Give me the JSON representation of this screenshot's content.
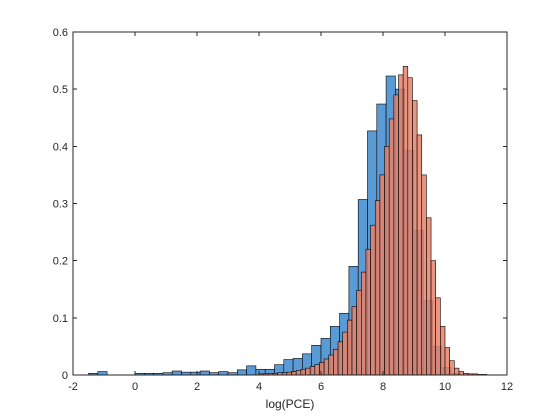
{
  "chart_data": {
    "type": "bar",
    "chart_subtype": "overlaid-histogram",
    "title": "",
    "xlabel": "log(PCE)",
    "ylabel": "",
    "xlim": [
      -2,
      12
    ],
    "ylim": [
      0,
      0.6
    ],
    "x_ticks": [
      -2,
      0,
      2,
      4,
      6,
      8,
      10,
      12
    ],
    "y_ticks": [
      0,
      0.1,
      0.2,
      0.3,
      0.4,
      0.5,
      0.6
    ],
    "x_tick_labels": [
      "-2",
      "0",
      "2",
      "4",
      "6",
      "8",
      "10",
      "12"
    ],
    "y_tick_labels": [
      "0",
      "0.1",
      "0.2",
      "0.3",
      "0.4",
      "0.5",
      "0.6"
    ],
    "grid": false,
    "legend": false,
    "series": [
      {
        "color": "#5b9bd5",
        "opacity": 1.0,
        "bin_width": 0.3,
        "bins_start": [
          -1.5,
          -1.2,
          0.0,
          0.3,
          0.6,
          0.9,
          1.2,
          1.5,
          1.8,
          2.1,
          2.4,
          2.7,
          3.0,
          3.3,
          3.6,
          3.9,
          4.2,
          4.5,
          4.8,
          5.1,
          5.4,
          5.7,
          6.0,
          6.3,
          6.6,
          6.9,
          7.2,
          7.5,
          7.8,
          8.1,
          8.4,
          8.7,
          9.0,
          9.3,
          9.6,
          9.9,
          10.2
        ],
        "values": [
          0.003,
          0.006,
          0.003,
          0.003,
          0.003,
          0.004,
          0.007,
          0.005,
          0.005,
          0.007,
          0.004,
          0.006,
          0.004,
          0.009,
          0.016,
          0.01,
          0.01,
          0.018,
          0.027,
          0.029,
          0.037,
          0.052,
          0.064,
          0.085,
          0.108,
          0.19,
          0.307,
          0.427,
          0.474,
          0.523,
          0.5,
          0.393,
          0.253,
          0.13,
          0.05,
          0.013,
          0.003
        ]
      },
      {
        "color": "#e8826a",
        "opacity": 0.85,
        "bin_width": 0.15,
        "bins_start": [
          4.0,
          4.15,
          4.3,
          4.45,
          4.6,
          4.75,
          4.9,
          5.05,
          5.2,
          5.35,
          5.5,
          5.65,
          5.8,
          5.95,
          6.1,
          6.25,
          6.4,
          6.55,
          6.7,
          6.85,
          7.0,
          7.15,
          7.3,
          7.45,
          7.6,
          7.75,
          7.9,
          8.05,
          8.2,
          8.35,
          8.5,
          8.65,
          8.8,
          8.95,
          9.1,
          9.25,
          9.4,
          9.55,
          9.7,
          9.85,
          10.0,
          10.15,
          10.3,
          10.45,
          10.6,
          10.75,
          10.9,
          11.05,
          11.2
        ],
        "values": [
          0.002,
          0.002,
          0.003,
          0.003,
          0.004,
          0.004,
          0.005,
          0.006,
          0.008,
          0.01,
          0.012,
          0.015,
          0.018,
          0.022,
          0.028,
          0.035,
          0.045,
          0.058,
          0.075,
          0.096,
          0.12,
          0.148,
          0.18,
          0.22,
          0.262,
          0.305,
          0.35,
          0.4,
          0.448,
          0.49,
          0.525,
          0.54,
          0.52,
          0.48,
          0.42,
          0.35,
          0.275,
          0.2,
          0.135,
          0.085,
          0.048,
          0.025,
          0.012,
          0.006,
          0.003,
          0.002,
          0.002,
          0.001,
          0.001
        ]
      }
    ]
  }
}
